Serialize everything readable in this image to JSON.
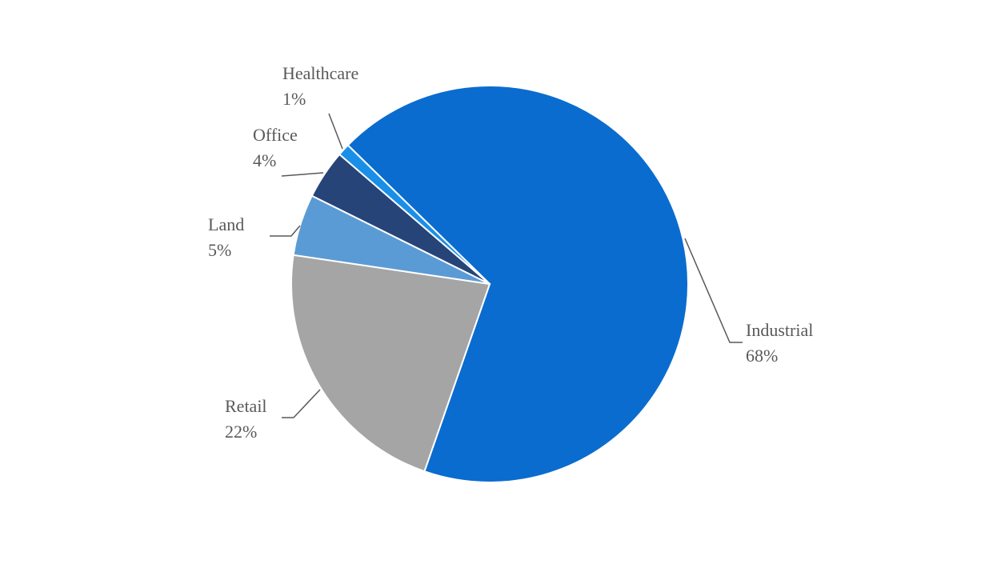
{
  "chart_data": {
    "type": "pie",
    "categories": [
      "Industrial",
      "Retail",
      "Land",
      "Office",
      "Healthcare"
    ],
    "values": [
      68,
      22,
      5,
      4,
      1
    ],
    "value_labels": [
      "68%",
      "22%",
      "5%",
      "4%",
      "1%"
    ],
    "colors": [
      "#0a6ccf",
      "#a5a5a5",
      "#5b9bd5",
      "#264478",
      "#1a8fe8"
    ]
  }
}
